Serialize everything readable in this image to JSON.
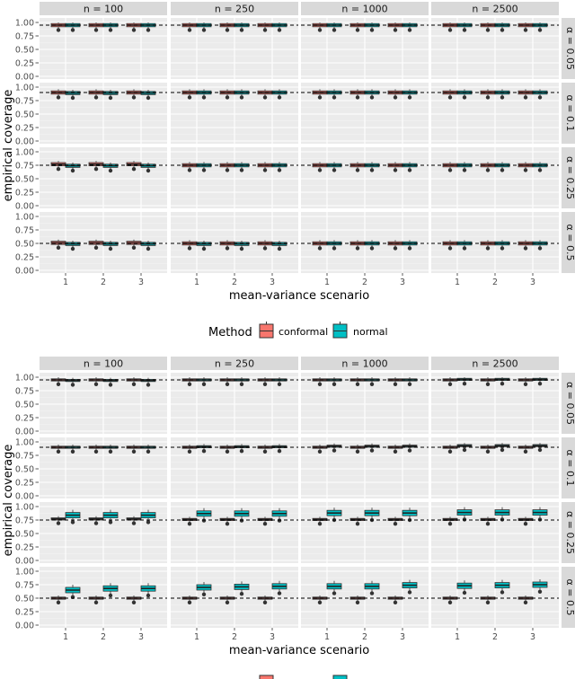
{
  "chart_data": [
    {
      "type": "boxplot-facet-grid",
      "title": "",
      "xlabel": "mean-variance scenario",
      "ylabel": "empirical coverage",
      "facet_cols": [
        "n = 100",
        "n = 250",
        "n = 1000",
        "n = 2500"
      ],
      "facet_rows": [
        "α = 0.05",
        "α = 0.1",
        "α = 0.25",
        "α = 0.5"
      ],
      "row_ylim": [
        [
          0,
          1
        ],
        [
          0,
          1
        ],
        [
          0,
          1
        ],
        [
          0,
          1
        ]
      ],
      "y_ticks": [
        "0.00",
        "0.25",
        "0.50",
        "0.75",
        "1.00"
      ],
      "x_categories": [
        "1",
        "2",
        "3"
      ],
      "reference_lines": [
        0.95,
        0.9,
        0.75,
        0.5
      ],
      "series": [
        {
          "name": "conformal",
          "color": "#F8766D"
        },
        {
          "name": "normal",
          "color": "#00BFC4"
        }
      ],
      "boxes": [
        [
          [
            [
              0.95,
              0.95
            ],
            [
              0.95,
              0.95
            ],
            [
              0.95,
              0.95
            ]
          ],
          [
            [
              0.95,
              0.95
            ],
            [
              0.95,
              0.95
            ],
            [
              0.95,
              0.95
            ]
          ],
          [
            [
              0.95,
              0.95
            ],
            [
              0.95,
              0.95
            ],
            [
              0.95,
              0.95
            ]
          ],
          [
            [
              0.95,
              0.95
            ],
            [
              0.95,
              0.95
            ],
            [
              0.95,
              0.95
            ]
          ]
        ],
        [
          [
            [
              0.9,
              0.89
            ],
            [
              0.9,
              0.89
            ],
            [
              0.9,
              0.89
            ]
          ],
          [
            [
              0.9,
              0.9
            ],
            [
              0.9,
              0.9
            ],
            [
              0.9,
              0.9
            ]
          ],
          [
            [
              0.9,
              0.9
            ],
            [
              0.9,
              0.9
            ],
            [
              0.9,
              0.9
            ]
          ],
          [
            [
              0.9,
              0.9
            ],
            [
              0.9,
              0.9
            ],
            [
              0.9,
              0.9
            ]
          ]
        ],
        [
          [
            [
              0.77,
              0.74
            ],
            [
              0.77,
              0.74
            ],
            [
              0.77,
              0.74
            ]
          ],
          [
            [
              0.75,
              0.75
            ],
            [
              0.75,
              0.75
            ],
            [
              0.75,
              0.75
            ]
          ],
          [
            [
              0.75,
              0.75
            ],
            [
              0.75,
              0.75
            ],
            [
              0.75,
              0.75
            ]
          ],
          [
            [
              0.75,
              0.75
            ],
            [
              0.75,
              0.75
            ],
            [
              0.75,
              0.75
            ]
          ]
        ],
        [
          [
            [
              0.51,
              0.49
            ],
            [
              0.51,
              0.49
            ],
            [
              0.51,
              0.49
            ]
          ],
          [
            [
              0.5,
              0.49
            ],
            [
              0.5,
              0.49
            ],
            [
              0.5,
              0.49
            ]
          ],
          [
            [
              0.5,
              0.5
            ],
            [
              0.5,
              0.5
            ],
            [
              0.5,
              0.5
            ]
          ],
          [
            [
              0.5,
              0.5
            ],
            [
              0.5,
              0.5
            ],
            [
              0.5,
              0.5
            ]
          ]
        ]
      ]
    },
    {
      "type": "boxplot-facet-grid",
      "title": "",
      "xlabel": "mean-variance scenario",
      "ylabel": "empirical coverage",
      "facet_cols": [
        "n = 100",
        "n = 250",
        "n = 1000",
        "n = 2500"
      ],
      "facet_rows": [
        "α = 0.05",
        "α = 0.1",
        "α = 0.25",
        "α = 0.5"
      ],
      "y_ticks": [
        "0.00",
        "0.25",
        "0.50",
        "0.75",
        "1.00"
      ],
      "x_categories": [
        "1",
        "2",
        "3"
      ],
      "reference_lines": [
        0.95,
        0.9,
        0.75,
        0.5
      ],
      "series": [
        {
          "name": "conformal",
          "color": "#F8766D"
        },
        {
          "name": "normal",
          "color": "#00BFC4"
        }
      ],
      "boxes": [
        [
          [
            [
              0.95,
              0.94
            ],
            [
              0.95,
              0.94
            ],
            [
              0.95,
              0.94
            ]
          ],
          [
            [
              0.95,
              0.95
            ],
            [
              0.95,
              0.95
            ],
            [
              0.95,
              0.95
            ]
          ],
          [
            [
              0.95,
              0.95
            ],
            [
              0.95,
              0.95
            ],
            [
              0.95,
              0.95
            ]
          ],
          [
            [
              0.95,
              0.96
            ],
            [
              0.95,
              0.96
            ],
            [
              0.95,
              0.96
            ]
          ]
        ],
        [
          [
            [
              0.9,
              0.9
            ],
            [
              0.9,
              0.9
            ],
            [
              0.9,
              0.9
            ]
          ],
          [
            [
              0.9,
              0.91
            ],
            [
              0.9,
              0.91
            ],
            [
              0.9,
              0.91
            ]
          ],
          [
            [
              0.9,
              0.92
            ],
            [
              0.9,
              0.92
            ],
            [
              0.9,
              0.92
            ]
          ],
          [
            [
              0.9,
              0.93
            ],
            [
              0.9,
              0.93
            ],
            [
              0.9,
              0.93
            ]
          ]
        ],
        [
          [
            [
              0.77,
              0.84
            ],
            [
              0.77,
              0.84
            ],
            [
              0.77,
              0.84
            ]
          ],
          [
            [
              0.76,
              0.87
            ],
            [
              0.76,
              0.87
            ],
            [
              0.76,
              0.87
            ]
          ],
          [
            [
              0.76,
              0.88
            ],
            [
              0.76,
              0.88
            ],
            [
              0.76,
              0.88
            ]
          ],
          [
            [
              0.76,
              0.89
            ],
            [
              0.76,
              0.89
            ],
            [
              0.76,
              0.89
            ]
          ]
        ],
        [
          [
            [
              0.5,
              0.65
            ],
            [
              0.5,
              0.68
            ],
            [
              0.5,
              0.68
            ]
          ],
          [
            [
              0.5,
              0.7
            ],
            [
              0.5,
              0.71
            ],
            [
              0.5,
              0.72
            ]
          ],
          [
            [
              0.5,
              0.72
            ],
            [
              0.5,
              0.72
            ],
            [
              0.5,
              0.74
            ]
          ],
          [
            [
              0.5,
              0.73
            ],
            [
              0.5,
              0.74
            ],
            [
              0.5,
              0.75
            ]
          ]
        ]
      ]
    }
  ],
  "legend": {
    "title": "Method",
    "items": [
      {
        "label": "conformal",
        "color": "#F8766D"
      },
      {
        "label": "normal",
        "color": "#00BFC4"
      }
    ]
  },
  "bottom_legend_partial": true
}
